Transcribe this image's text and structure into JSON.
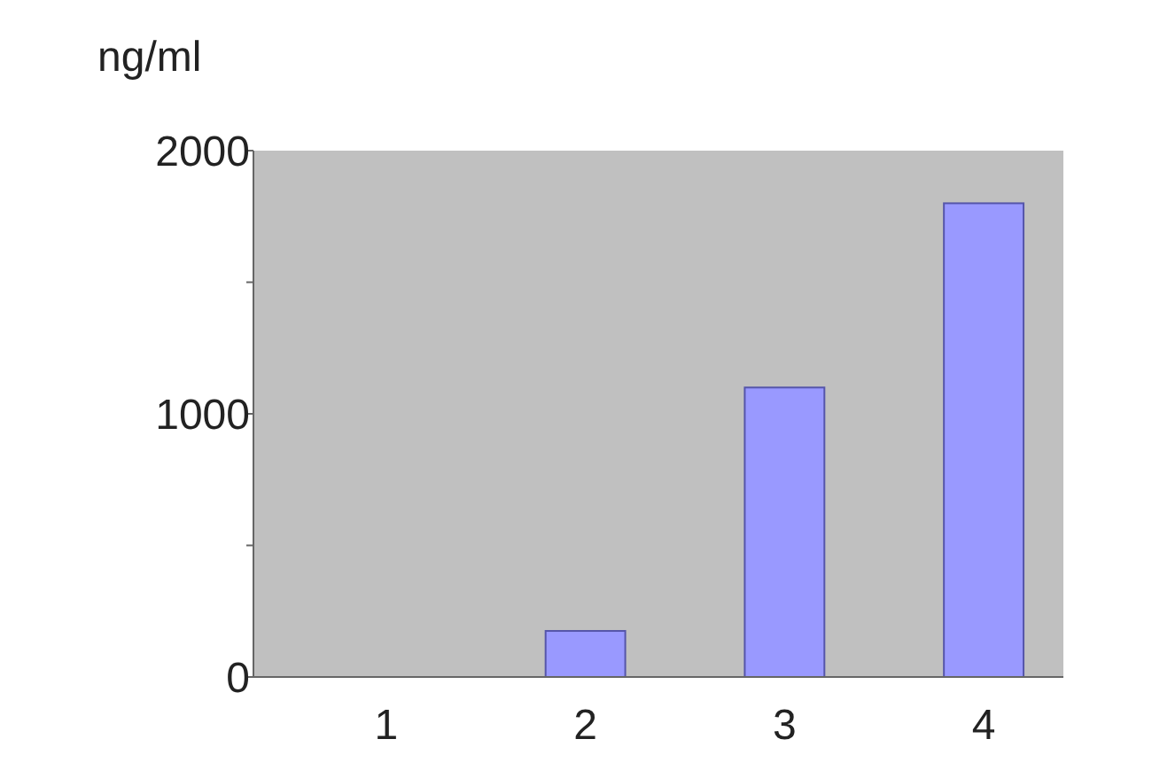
{
  "chart_data": {
    "type": "bar",
    "ylabel": "ng/ml",
    "categories": [
      "1",
      "2",
      "3",
      "4"
    ],
    "values": [
      0,
      175,
      1100,
      1800
    ],
    "color": "#9999ff",
    "ylim": [
      0,
      2000
    ],
    "yticks": [
      0,
      {
        "value": 500,
        "label": null
      },
      1000,
      {
        "value": 1500,
        "label": null
      },
      2000
    ],
    "grid": false
  }
}
